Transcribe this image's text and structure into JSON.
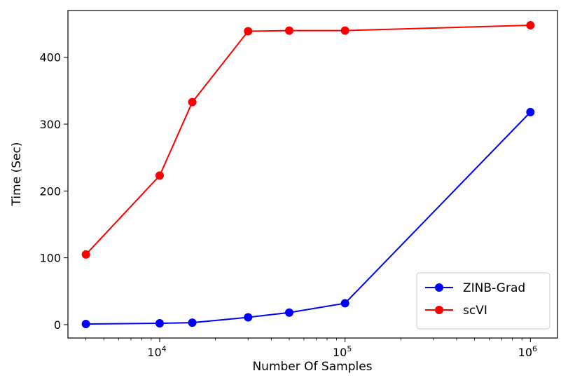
{
  "chart_data": {
    "type": "line",
    "xscale": "log",
    "xlabel": "Number Of Samples",
    "ylabel": "Time (Sec)",
    "xlim": [
      3200,
      1400000
    ],
    "ylim": [
      -20,
      470
    ],
    "x_ticks": [
      {
        "value": 10000,
        "base": "10",
        "exp": "4"
      },
      {
        "value": 100000,
        "base": "10",
        "exp": "5"
      },
      {
        "value": 1000000,
        "base": "10",
        "exp": "6"
      }
    ],
    "y_ticks": [
      0,
      100,
      200,
      300,
      400
    ],
    "legend_position": "lower right",
    "x": [
      4000,
      10000,
      15000,
      30000,
      50000,
      100000,
      1000000
    ],
    "series": [
      {
        "name": "ZINB-Grad",
        "color": "#0000ff",
        "values": [
          1,
          2,
          3,
          11,
          18,
          32,
          318
        ]
      },
      {
        "name": "scVI",
        "color": "#ff0000",
        "values": [
          105,
          223,
          333,
          439,
          440,
          440,
          448
        ]
      }
    ]
  }
}
